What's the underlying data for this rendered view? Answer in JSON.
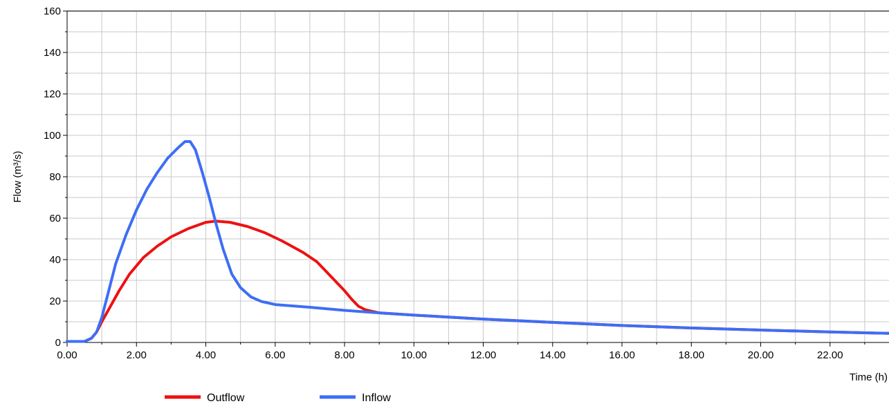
{
  "chart_data": {
    "type": "line",
    "title": "",
    "xlabel": "Time (h)",
    "ylabel": "Flow (m³/s)",
    "xlim": [
      0,
      23.7
    ],
    "ylim": [
      0,
      160
    ],
    "x_ticks": [
      "0.00",
      "2.00",
      "4.00",
      "6.00",
      "8.00",
      "10.00",
      "12.00",
      "14.00",
      "16.00",
      "18.00",
      "20.00",
      "22.00"
    ],
    "y_ticks": [
      "0",
      "20",
      "40",
      "60",
      "80",
      "100",
      "120",
      "140",
      "160"
    ],
    "grid": true,
    "legend_position": "bottom",
    "series": [
      {
        "name": "Outflow",
        "color": "#ee1111",
        "points": [
          [
            0,
            0.5
          ],
          [
            0.5,
            0.5
          ],
          [
            0.7,
            2
          ],
          [
            0.85,
            5
          ],
          [
            1.0,
            10
          ],
          [
            1.2,
            16
          ],
          [
            1.5,
            25
          ],
          [
            1.8,
            33
          ],
          [
            2.2,
            41
          ],
          [
            2.6,
            46.5
          ],
          [
            3.0,
            51
          ],
          [
            3.5,
            55
          ],
          [
            4.0,
            58
          ],
          [
            4.3,
            58.6
          ],
          [
            4.7,
            58
          ],
          [
            5.2,
            56
          ],
          [
            5.7,
            53
          ],
          [
            6.2,
            49
          ],
          [
            6.8,
            43.5
          ],
          [
            7.2,
            39
          ],
          [
            7.6,
            32
          ],
          [
            8.0,
            25
          ],
          [
            8.2,
            21
          ],
          [
            8.4,
            17.5
          ],
          [
            8.6,
            15.8
          ],
          [
            8.8,
            15
          ],
          [
            9.0,
            14.3
          ],
          [
            10,
            13.2
          ],
          [
            12,
            11.3
          ],
          [
            14,
            9.7
          ],
          [
            16,
            8.2
          ],
          [
            18,
            7
          ],
          [
            20,
            6
          ],
          [
            22,
            5.1
          ],
          [
            23.7,
            4.4
          ]
        ]
      },
      {
        "name": "Inflow",
        "color": "#3d6ef5",
        "points": [
          [
            0,
            0.5
          ],
          [
            0.5,
            0.5
          ],
          [
            0.7,
            2
          ],
          [
            0.85,
            5
          ],
          [
            1.0,
            12
          ],
          [
            1.2,
            25
          ],
          [
            1.4,
            38
          ],
          [
            1.7,
            52
          ],
          [
            2.0,
            64
          ],
          [
            2.3,
            74
          ],
          [
            2.6,
            82
          ],
          [
            2.9,
            89
          ],
          [
            3.2,
            94
          ],
          [
            3.4,
            97
          ],
          [
            3.55,
            97
          ],
          [
            3.7,
            93
          ],
          [
            3.9,
            82
          ],
          [
            4.1,
            70
          ],
          [
            4.3,
            57
          ],
          [
            4.5,
            45
          ],
          [
            4.75,
            33
          ],
          [
            5.0,
            26.5
          ],
          [
            5.3,
            22
          ],
          [
            5.6,
            19.8
          ],
          [
            6.0,
            18.3
          ],
          [
            7,
            17
          ],
          [
            8,
            15.5
          ],
          [
            9,
            14.3
          ],
          [
            10,
            13.2
          ],
          [
            12,
            11.3
          ],
          [
            14,
            9.7
          ],
          [
            16,
            8.2
          ],
          [
            18,
            7
          ],
          [
            20,
            6
          ],
          [
            22,
            5.1
          ],
          [
            23.7,
            4.4
          ]
        ]
      }
    ]
  }
}
